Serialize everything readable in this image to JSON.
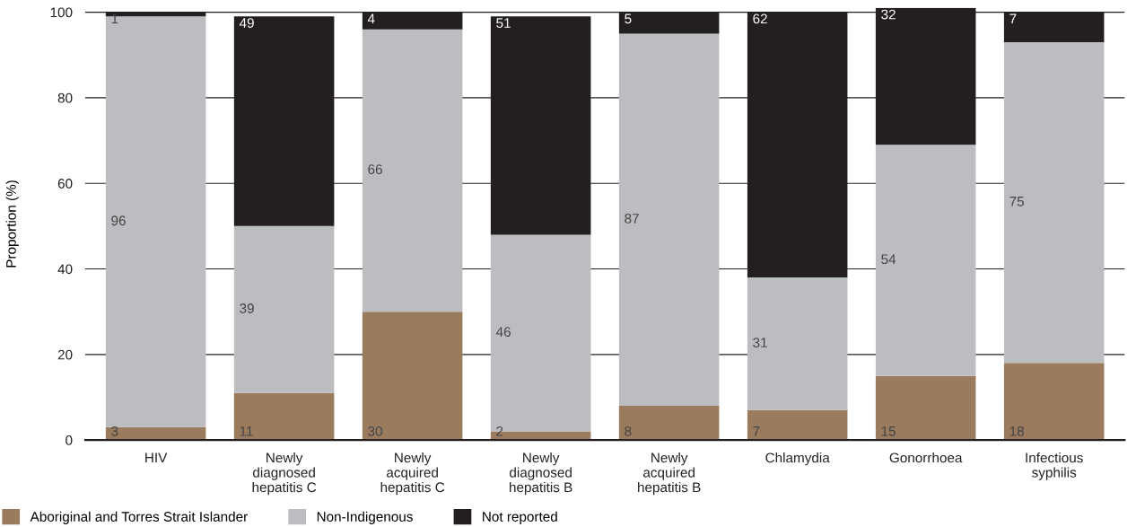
{
  "chart_data": {
    "type": "bar",
    "stacked": true,
    "ylabel": "Proportion (%)",
    "categories": [
      "HIV",
      "Newly\ndiagnosed\nhepatitis C",
      "Newly\nacquired\nhepatitis C",
      "Newly\ndiagnosed\nhepatitis B",
      "Newly\nacquired\nhepatitis B",
      "Chlamydia",
      "Gonorrhoea",
      "Infectious\nsyphilis"
    ],
    "series": [
      {
        "name": "Aboriginal and Torres Strait Islander",
        "color": "#9b7b5e",
        "values": [
          3,
          11,
          30,
          2,
          8,
          7,
          15,
          18
        ]
      },
      {
        "name": "Non-Indigenous",
        "color": "#bcbdc0",
        "values": [
          96,
          39,
          66,
          46,
          87,
          31,
          54,
          75
        ]
      },
      {
        "name": "Not reported",
        "color": "#231f20",
        "values": [
          1,
          49,
          4,
          51,
          5,
          62,
          32,
          7
        ]
      }
    ],
    "ylim": [
      0,
      101
    ],
    "yticks": [
      0,
      20,
      40,
      60,
      80,
      100
    ],
    "grid": "y",
    "legend": "bottom",
    "data_labels": true
  }
}
